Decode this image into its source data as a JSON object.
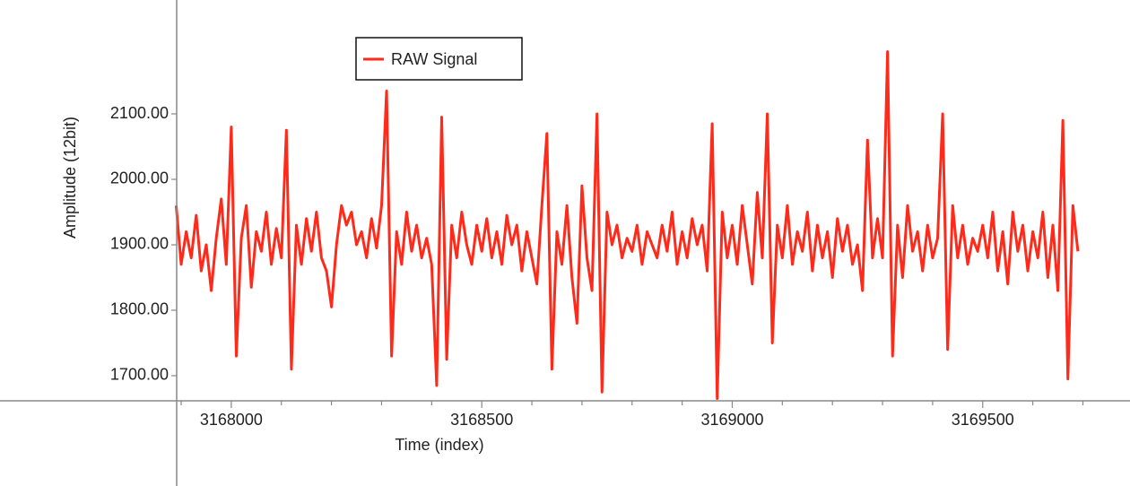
{
  "chart_data": {
    "type": "line",
    "x_label": "Time (index)",
    "y_label": "Amplitude (12bit)",
    "xlim": [
      3167891,
      3169794
    ],
    "ylim": [
      1661.6,
      2274
    ],
    "xticks": [
      3168000,
      3168500,
      3169000,
      3169500
    ],
    "xminorticks": [
      3167900,
      3168100,
      3168200,
      3168300,
      3168400,
      3168600,
      3168700,
      3168800,
      3168900,
      3169100,
      3169200,
      3169300,
      3169400,
      3169600,
      3169700
    ],
    "yticks": [
      {
        "value": 1700,
        "label": "1700.00"
      },
      {
        "value": 1800,
        "label": "1800.00"
      },
      {
        "value": 1900,
        "label": "1900.00"
      },
      {
        "value": 2000,
        "label": "2000.00"
      },
      {
        "value": 2100,
        "label": "2100.00"
      }
    ],
    "legend": "top-left",
    "x": [
      3167890,
      3167900,
      3167910,
      3167920,
      3167930,
      3167940,
      3167950,
      3167960,
      3167970,
      3167980,
      3167990,
      3168000,
      3168010,
      3168020,
      3168030,
      3168040,
      3168050,
      3168060,
      3168070,
      3168080,
      3168090,
      3168100,
      3168110,
      3168120,
      3168130,
      3168140,
      3168150,
      3168160,
      3168170,
      3168180,
      3168190,
      3168200,
      3168210,
      3168220,
      3168230,
      3168240,
      3168250,
      3168260,
      3168270,
      3168280,
      3168290,
      3168300,
      3168310,
      3168320,
      3168330,
      3168340,
      3168350,
      3168360,
      3168370,
      3168380,
      3168390,
      3168400,
      3168410,
      3168420,
      3168430,
      3168440,
      3168450,
      3168460,
      3168470,
      3168480,
      3168490,
      3168500,
      3168510,
      3168520,
      3168530,
      3168540,
      3168550,
      3168560,
      3168570,
      3168580,
      3168590,
      3168600,
      3168610,
      3168620,
      3168630,
      3168640,
      3168650,
      3168660,
      3168670,
      3168680,
      3168690,
      3168700,
      3168710,
      3168720,
      3168730,
      3168740,
      3168750,
      3168760,
      3168770,
      3168780,
      3168790,
      3168800,
      3168810,
      3168820,
      3168830,
      3168840,
      3168850,
      3168860,
      3168870,
      3168880,
      3168890,
      3168900,
      3168910,
      3168920,
      3168930,
      3168940,
      3168950,
      3168960,
      3168970,
      3168980,
      3168990,
      3169000,
      3169010,
      3169020,
      3169030,
      3169040,
      3169050,
      3169060,
      3169070,
      3169080,
      3169090,
      3169100,
      3169110,
      3169120,
      3169130,
      3169140,
      3169150,
      3169160,
      3169170,
      3169180,
      3169190,
      3169200,
      3169210,
      3169220,
      3169230,
      3169240,
      3169250,
      3169260,
      3169270,
      3169280,
      3169290,
      3169300,
      3169310,
      3169320,
      3169330,
      3169340,
      3169350,
      3169360,
      3169370,
      3169380,
      3169390,
      3169400,
      3169410,
      3169420,
      3169430,
      3169440,
      3169450,
      3169460,
      3169470,
      3169480,
      3169490,
      3169500,
      3169510,
      3169520,
      3169530,
      3169540,
      3169550,
      3169560,
      3169570,
      3169580,
      3169590,
      3169600,
      3169610,
      3169620,
      3169630,
      3169640,
      3169650,
      3169660,
      3169670,
      3169680,
      3169690
    ],
    "series": [
      {
        "name": "RAW Signal",
        "color": "#ff2a1a",
        "values": [
          1960,
          1870,
          1920,
          1880,
          1945,
          1860,
          1900,
          1830,
          1910,
          1970,
          1870,
          2080,
          1730,
          1910,
          1960,
          1835,
          1920,
          1890,
          1950,
          1870,
          1925,
          1880,
          2075,
          1710,
          1930,
          1870,
          1940,
          1890,
          1950,
          1880,
          1860,
          1805,
          1900,
          1960,
          1930,
          1950,
          1900,
          1920,
          1880,
          1940,
          1895,
          1960,
          2135,
          1730,
          1920,
          1870,
          1950,
          1890,
          1930,
          1880,
          1910,
          1870,
          1685,
          2095,
          1725,
          1930,
          1880,
          1950,
          1900,
          1870,
          1930,
          1890,
          1940,
          1880,
          1920,
          1870,
          1945,
          1900,
          1930,
          1860,
          1920,
          1880,
          1840,
          1960,
          2070,
          1710,
          1920,
          1870,
          1960,
          1850,
          1780,
          1990,
          1880,
          1830,
          2100,
          1675,
          1950,
          1900,
          1930,
          1880,
          1910,
          1890,
          1930,
          1870,
          1920,
          1900,
          1880,
          1930,
          1890,
          1950,
          1870,
          1920,
          1880,
          1940,
          1900,
          1930,
          1860,
          2085,
          1665,
          1950,
          1880,
          1930,
          1870,
          1960,
          1900,
          1840,
          1980,
          1880,
          2100,
          1750,
          1930,
          1880,
          1960,
          1870,
          1920,
          1890,
          1950,
          1860,
          1930,
          1880,
          1920,
          1850,
          1940,
          1890,
          1930,
          1870,
          1900,
          1830,
          2060,
          1880,
          1940,
          1880,
          2195,
          1730,
          1930,
          1850,
          1960,
          1890,
          1920,
          1860,
          1930,
          1880,
          1910,
          2100,
          1740,
          1960,
          1880,
          1930,
          1870,
          1910,
          1890,
          1930,
          1880,
          1950,
          1860,
          1920,
          1840,
          1950,
          1890,
          1930,
          1860,
          1920,
          1880,
          1950,
          1850,
          1930,
          1830,
          2090,
          1695,
          1960,
          1890
        ]
      }
    ]
  }
}
